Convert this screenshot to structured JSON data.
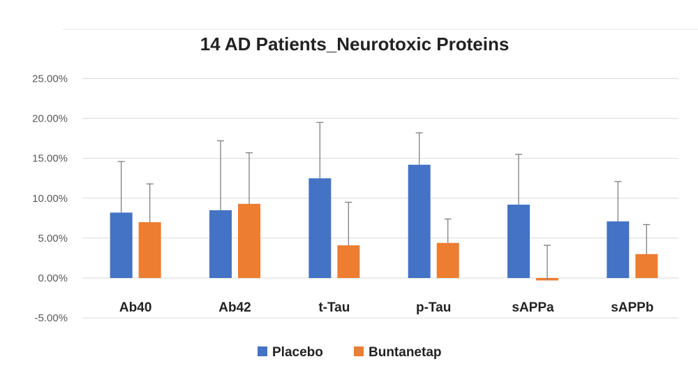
{
  "chart_data": {
    "type": "bar",
    "title": "14 AD Patients_Neurotoxic Proteins",
    "xlabel": "",
    "ylabel": "",
    "categories": [
      "Ab40",
      "Ab42",
      "t-Tau",
      "p-Tau",
      "sAPPa",
      "sAPPb"
    ],
    "ylim": [
      -0.05,
      0.25
    ],
    "ytick_values": [
      -0.05,
      0,
      0.05,
      0.1,
      0.15,
      0.2,
      0.25
    ],
    "ytick_labels": [
      "-5.00%",
      "0.00%",
      "5.00%",
      "10.00%",
      "15.00%",
      "20.00%",
      "25.00%"
    ],
    "grid": true,
    "legend_position": "bottom",
    "series": [
      {
        "name": "Placebo",
        "color": "#4472C4",
        "values": [
          0.082,
          0.085,
          0.125,
          0.142,
          0.092,
          0.071
        ],
        "error_upper": [
          0.146,
          0.172,
          0.195,
          0.182,
          0.155,
          0.121
        ]
      },
      {
        "name": "Buntanetap",
        "color": "#ED7D31",
        "values": [
          0.07,
          0.093,
          0.041,
          0.044,
          -0.003,
          0.03
        ],
        "error_upper": [
          0.118,
          0.157,
          0.095,
          0.074,
          0.041,
          0.067
        ]
      }
    ]
  }
}
